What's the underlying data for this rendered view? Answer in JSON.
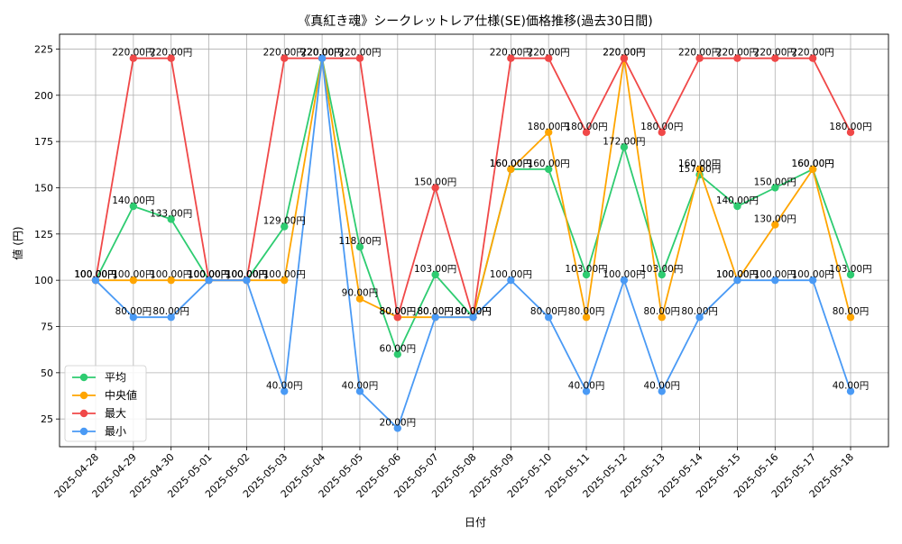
{
  "chart_data": {
    "type": "line",
    "title": "《真紅き魂》シークレットレア仕様(SE)価格推移(過去30日間)",
    "xlabel": "日付",
    "ylabel": "値 (円)",
    "ylim": [
      10,
      233
    ],
    "yticks": [
      25,
      50,
      75,
      100,
      125,
      150,
      175,
      200,
      225
    ],
    "grid": true,
    "legend_position": "lower-left",
    "label_suffix": "円",
    "categories": [
      "2025-04-28",
      "2025-04-29",
      "2025-04-30",
      "2025-05-01",
      "2025-05-02",
      "2025-05-03",
      "2025-05-04",
      "2025-05-05",
      "2025-05-06",
      "2025-05-07",
      "2025-05-08",
      "2025-05-09",
      "2025-05-10",
      "2025-05-11",
      "2025-05-12",
      "2025-05-13",
      "2025-05-14",
      "2025-05-15",
      "2025-05-16",
      "2025-05-17",
      "2025-05-18"
    ],
    "series": [
      {
        "name": "平均",
        "color": "#2ecc71",
        "values": [
          100,
          140,
          133,
          100,
          100,
          129,
          220,
          118,
          60,
          103,
          80,
          160,
          160,
          103,
          172,
          103,
          157,
          140,
          150,
          160,
          103
        ]
      },
      {
        "name": "中央値",
        "color": "#ffa500",
        "values": [
          100,
          100,
          100,
          100,
          100,
          100,
          220,
          90,
          80,
          80,
          80,
          160,
          180,
          80,
          220,
          80,
          160,
          100,
          130,
          160,
          80
        ]
      },
      {
        "name": "最大",
        "color": "#f04848",
        "values": [
          100,
          220,
          220,
          100,
          100,
          220,
          220,
          220,
          80,
          150,
          80,
          220,
          220,
          180,
          220,
          180,
          220,
          220,
          220,
          220,
          180
        ]
      },
      {
        "name": "最小",
        "color": "#4a9af5",
        "values": [
          100,
          80,
          80,
          100,
          100,
          40,
          220,
          40,
          20,
          80,
          80,
          100,
          80,
          40,
          100,
          40,
          80,
          100,
          100,
          100,
          40
        ]
      }
    ]
  }
}
